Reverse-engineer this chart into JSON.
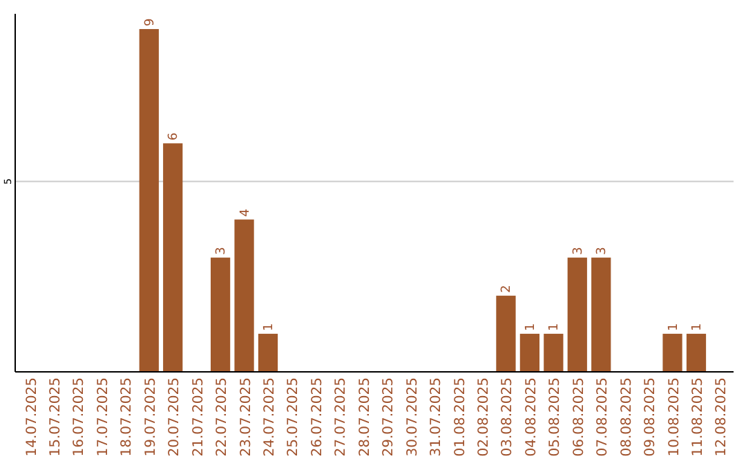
{
  "chart_data": {
    "type": "bar",
    "categories": [
      "14.07.2025",
      "15.07.2025",
      "16.07.2025",
      "17.07.2025",
      "18.07.2025",
      "19.07.2025",
      "20.07.2025",
      "21.07.2025",
      "22.07.2025",
      "23.07.2025",
      "24.07.2025",
      "25.07.2025",
      "26.07.2025",
      "27.07.2025",
      "28.07.2025",
      "29.07.2025",
      "30.07.2025",
      "31.07.2025",
      "01.08.2025",
      "02.08.2025",
      "03.08.2025",
      "04.08.2025",
      "05.08.2025",
      "06.08.2025",
      "07.08.2025",
      "08.08.2025",
      "09.08.2025",
      "10.08.2025",
      "11.08.2025",
      "12.08.2025"
    ],
    "values": [
      0,
      0,
      0,
      0,
      0,
      9,
      6,
      0,
      3,
      4,
      1,
      0,
      0,
      0,
      0,
      0,
      0,
      0,
      0,
      0,
      2,
      1,
      1,
      3,
      3,
      0,
      0,
      1,
      1,
      0
    ],
    "value_labels": [
      null,
      null,
      null,
      null,
      null,
      "9",
      "6",
      null,
      "3",
      "4",
      "1",
      null,
      null,
      null,
      null,
      null,
      null,
      null,
      null,
      null,
      "2",
      "1",
      "1",
      "3",
      "3",
      null,
      null,
      "1",
      "1",
      null
    ],
    "color": "#a0582a",
    "ylim": [
      0,
      9.4
    ],
    "yticks": [
      {
        "value": 0,
        "label": null
      },
      5
    ],
    "grid": "y"
  }
}
